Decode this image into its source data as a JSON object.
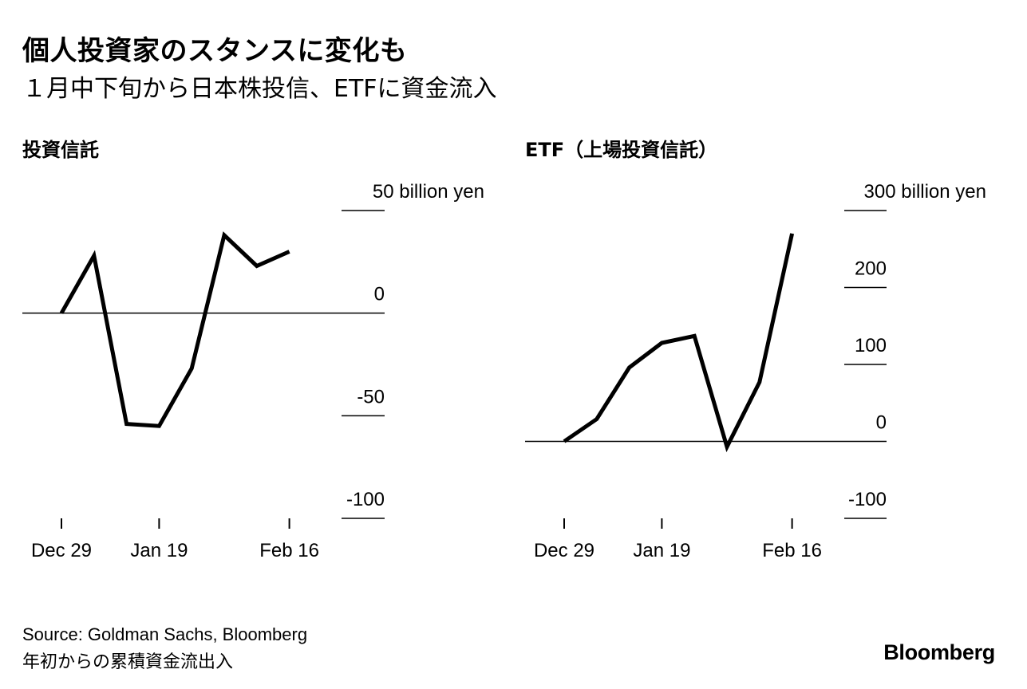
{
  "title": "個人投資家のスタンスに変化も",
  "subtitle": "１月中下旬から日本株投信、ETFに資金流入",
  "source": "Source: Goldman Sachs, Bloomberg",
  "note": "年初からの累積資金流出入",
  "brand": "Bloomberg",
  "colors": {
    "line": "#000000",
    "axis": "#000000",
    "background": "#ffffff"
  },
  "chart_data": [
    {
      "type": "line",
      "title": "投資信託",
      "ylabel": "50 billion yen",
      "ylim": [
        -100,
        50
      ],
      "y_ticks": [
        {
          "value": 50,
          "label": "50 billion yen"
        },
        {
          "value": 0,
          "label": "0"
        },
        {
          "value": -50,
          "label": "-50"
        },
        {
          "value": -100,
          "label": "-100"
        }
      ],
      "x_ticks": [
        "Dec 29",
        "Jan 19",
        "Feb 16"
      ],
      "x_tick_index": [
        0,
        3,
        7
      ],
      "series": [
        {
          "values": [
            0,
            28,
            -54,
            -55,
            -27,
            38,
            23,
            30
          ]
        }
      ]
    },
    {
      "type": "line",
      "title": "ETF（上場投資信託）",
      "ylabel": "300 billion yen",
      "ylim": [
        -100,
        300
      ],
      "y_ticks": [
        {
          "value": 300,
          "label": "300 billion yen"
        },
        {
          "value": 200,
          "label": "200"
        },
        {
          "value": 100,
          "label": "100"
        },
        {
          "value": 0,
          "label": "0"
        },
        {
          "value": -100,
          "label": "-100"
        }
      ],
      "x_ticks": [
        "Dec 29",
        "Jan 19",
        "Feb 16"
      ],
      "x_tick_index": [
        0,
        3,
        7
      ],
      "series": [
        {
          "values": [
            0,
            29,
            96,
            128,
            137,
            -7,
            77,
            270
          ]
        }
      ]
    }
  ]
}
